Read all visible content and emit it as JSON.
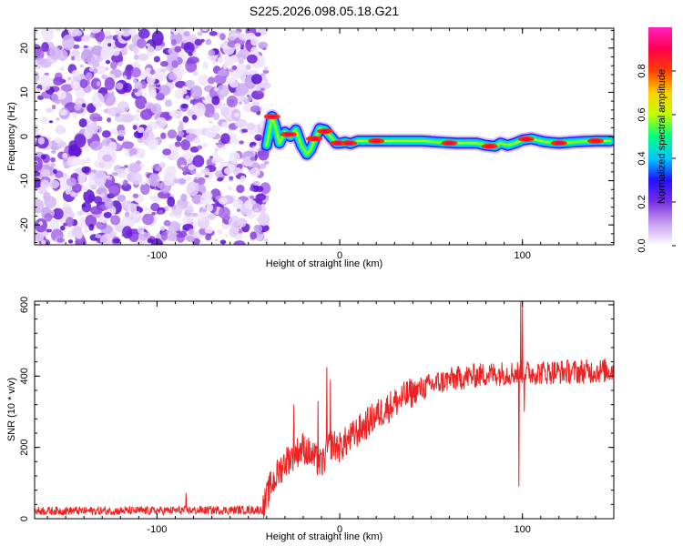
{
  "title": "S225.2026.098.05.18.G21",
  "chart_data": [
    {
      "type": "heatmap",
      "name": "spectrogram",
      "xlabel": "Height of straight line (km)",
      "ylabel": "Frequency (Hz)",
      "xlim": [
        -167,
        150
      ],
      "ylim": [
        -24.5,
        24.5
      ],
      "xticks": [
        -100,
        0,
        100
      ],
      "xtick_labels": [
        "-100",
        "0",
        "100"
      ],
      "yticks": [
        -20,
        -10,
        0,
        10,
        20
      ],
      "ytick_labels": [
        "-20",
        "-10",
        "0",
        "10",
        "20"
      ],
      "noise_region_x": [
        -167,
        -40
      ],
      "colorbar": {
        "label": "Normalized spectral amplitude",
        "range": [
          0.0,
          1.0
        ],
        "ticks": [
          0.0,
          0.2,
          0.4,
          0.6,
          0.8
        ],
        "tick_labels": [
          "0.0",
          "0.2",
          "0.4",
          "0.6",
          "0.8"
        ],
        "colors": [
          "#ffffff",
          "#c8a0f0",
          "#7a30e0",
          "#2010ff",
          "#00c8ff",
          "#00ff80",
          "#c0ff00",
          "#ffd000",
          "#ff4000",
          "#ff0050",
          "#ff20c0"
        ]
      },
      "ridge": {
        "x": [
          -40,
          -37,
          -35,
          -33,
          -30,
          -27,
          -24,
          -21,
          -18,
          -16,
          -14,
          -11,
          -8,
          -5,
          -2,
          0,
          3,
          6,
          10,
          15,
          25,
          35,
          45,
          55,
          65,
          75,
          80,
          85,
          88,
          92,
          96,
          100,
          105,
          112,
          120,
          130,
          140,
          148
        ],
        "y": [
          -2,
          4.5,
          2,
          -1.5,
          1,
          0,
          1.5,
          -2,
          -4,
          -3,
          -1,
          1.8,
          1.5,
          0,
          -1.5,
          -1.5,
          -1.3,
          -1.6,
          -1,
          -1,
          -1,
          -1,
          -1,
          -1.3,
          -1.5,
          -1.5,
          -2,
          -2.2,
          -1.5,
          -2,
          -1.5,
          -0.8,
          -0.5,
          -1.2,
          -1.5,
          -1.2,
          -1,
          -1
        ]
      },
      "peaks": [
        {
          "x": -37,
          "y": 4.5
        },
        {
          "x": -28,
          "y": 0.5
        },
        {
          "x": -14,
          "y": -0.5
        },
        {
          "x": -8,
          "y": 1.2
        },
        {
          "x": -1,
          "y": -1.5
        },
        {
          "x": 5,
          "y": -1.5
        },
        {
          "x": 20,
          "y": -1
        },
        {
          "x": 60,
          "y": -1.5
        },
        {
          "x": 82,
          "y": -2.2
        },
        {
          "x": 102,
          "y": -0.6
        },
        {
          "x": 120,
          "y": -1.5
        },
        {
          "x": 140,
          "y": -1
        }
      ]
    },
    {
      "type": "line",
      "name": "snr",
      "xlabel": "Height of straight line (km)",
      "ylabel": "SNR (10 * v/v)",
      "xlim": [
        -167,
        150
      ],
      "ylim": [
        0,
        610
      ],
      "xticks": [
        -100,
        0,
        100
      ],
      "xtick_labels": [
        "-100",
        "0",
        "100"
      ],
      "yticks": [
        0,
        200,
        400,
        600
      ],
      "ytick_labels": [
        "0",
        "200",
        "400",
        "600"
      ],
      "color": "#ee2222",
      "trend": {
        "x": [
          -167,
          -120,
          -60,
          -42,
          -38,
          -30,
          -20,
          -10,
          -5,
          0,
          10,
          20,
          30,
          40,
          50,
          60,
          70,
          80,
          90,
          100,
          110,
          120,
          130,
          140,
          150
        ],
        "y": [
          22,
          22,
          24,
          25,
          90,
          160,
          200,
          150,
          210,
          200,
          245,
          290,
          325,
          355,
          375,
          390,
          398,
          405,
          408,
          410,
          410,
          412,
          412,
          414,
          416
        ]
      },
      "noise_amplitude": 35,
      "spikes": [
        {
          "x": -84,
          "y": 72
        },
        {
          "x": -25,
          "y": 320
        },
        {
          "x": -12,
          "y": 330
        },
        {
          "x": -7,
          "y": 425
        },
        {
          "x": -5,
          "y": 390
        },
        {
          "x": 98,
          "y": 90
        },
        {
          "x": 99,
          "y": 610
        },
        {
          "x": 100,
          "y": 600
        },
        {
          "x": 101,
          "y": 300
        }
      ]
    }
  ]
}
